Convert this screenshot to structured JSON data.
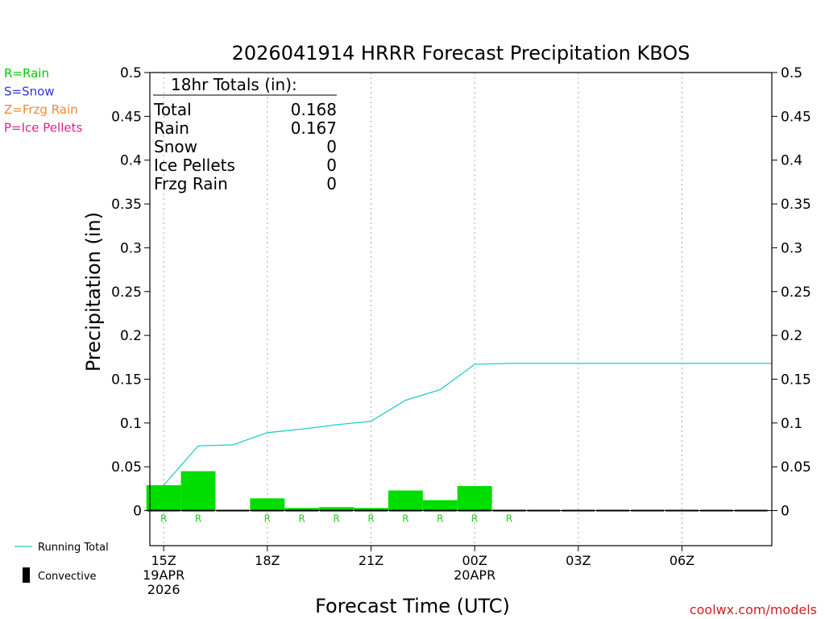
{
  "watermark": "coolwx.com/models",
  "legend_left": {
    "ptypes": [
      {
        "label": "R=Rain",
        "color": "#00cc00"
      },
      {
        "label": "S=Snow",
        "color": "#3333dd"
      },
      {
        "label": "Z=Frzg Rain",
        "color": "#ee8833"
      },
      {
        "label": "P=Ice Pellets",
        "color": "#dd2288"
      }
    ],
    "running_total_label": "Running Total",
    "convective_label": "Convective"
  },
  "totals_box": {
    "title": "18hr Totals (in):",
    "rows": [
      {
        "label": "Total",
        "value": "0.168"
      },
      {
        "label": "Rain",
        "value": "0.167"
      },
      {
        "label": "Snow",
        "value": "0"
      },
      {
        "label": "Ice Pellets",
        "value": "0"
      },
      {
        "label": "Frzg Rain",
        "value": "0"
      }
    ]
  },
  "chart_data": {
    "type": "bar",
    "title": "2026041914 HRRR Forecast Precipitation KBOS",
    "xlabel": "Forecast Time (UTC)",
    "ylabel": "Precipitation (in)",
    "ylim": [
      -0.04,
      0.5
    ],
    "yticks": [
      "0",
      "0.05",
      "0.1",
      "0.15",
      "0.2",
      "0.25",
      "0.3",
      "0.35",
      "0.4",
      "0.45",
      "0.5"
    ],
    "xlim": [
      14.6,
      32.6
    ],
    "xticks": [
      {
        "hour": 15,
        "lines": [
          "15Z",
          "19APR",
          "2026"
        ]
      },
      {
        "hour": 18,
        "lines": [
          "18Z"
        ]
      },
      {
        "hour": 21,
        "lines": [
          "21Z"
        ]
      },
      {
        "hour": 24,
        "lines": [
          "00Z",
          "20APR"
        ]
      },
      {
        "hour": 27,
        "lines": [
          "03Z"
        ]
      },
      {
        "hour": 30,
        "lines": [
          "06Z"
        ]
      }
    ],
    "grid": "vertical-dotted",
    "hourly_precip": [
      {
        "hour": 15,
        "value": 0.029,
        "ptype": "R"
      },
      {
        "hour": 16,
        "value": 0.045,
        "ptype": "R"
      },
      {
        "hour": 17,
        "value": 0.0,
        "ptype": ""
      },
      {
        "hour": 18,
        "value": 0.014,
        "ptype": "R"
      },
      {
        "hour": 19,
        "value": 0.003,
        "ptype": "R"
      },
      {
        "hour": 20,
        "value": 0.004,
        "ptype": "R"
      },
      {
        "hour": 21,
        "value": 0.003,
        "ptype": "R"
      },
      {
        "hour": 22,
        "value": 0.023,
        "ptype": "R"
      },
      {
        "hour": 23,
        "value": 0.012,
        "ptype": "R"
      },
      {
        "hour": 24,
        "value": 0.028,
        "ptype": "R"
      },
      {
        "hour": 25,
        "value": 0.001,
        "ptype": "R"
      },
      {
        "hour": 26,
        "value": 0.0,
        "ptype": ""
      },
      {
        "hour": 27,
        "value": 0.0,
        "ptype": ""
      },
      {
        "hour": 28,
        "value": 0.0,
        "ptype": ""
      },
      {
        "hour": 29,
        "value": 0.0,
        "ptype": ""
      },
      {
        "hour": 30,
        "value": 0.0,
        "ptype": ""
      },
      {
        "hour": 31,
        "value": 0.0,
        "ptype": ""
      },
      {
        "hour": 32,
        "value": 0.0,
        "ptype": ""
      }
    ],
    "running_total": [
      {
        "hour": 15,
        "value": 0.029
      },
      {
        "hour": 16,
        "value": 0.074
      },
      {
        "hour": 17,
        "value": 0.075
      },
      {
        "hour": 18,
        "value": 0.089
      },
      {
        "hour": 19,
        "value": 0.093
      },
      {
        "hour": 20,
        "value": 0.098
      },
      {
        "hour": 21,
        "value": 0.102
      },
      {
        "hour": 22,
        "value": 0.126
      },
      {
        "hour": 23,
        "value": 0.138
      },
      {
        "hour": 24,
        "value": 0.167
      },
      {
        "hour": 25,
        "value": 0.168
      },
      {
        "hour": 26,
        "value": 0.168
      },
      {
        "hour": 27,
        "value": 0.168
      },
      {
        "hour": 28,
        "value": 0.168
      },
      {
        "hour": 29,
        "value": 0.168
      },
      {
        "hour": 30,
        "value": 0.168
      },
      {
        "hour": 31,
        "value": 0.168
      },
      {
        "hour": 32,
        "value": 0.168
      },
      {
        "hour": 32.6,
        "value": 0.168
      }
    ],
    "colors": {
      "rain_bar": "#00dd00",
      "rain_label": "#22cc22",
      "running_total": "#22cccc",
      "convective": "#000000",
      "grid": "#aaaaaa",
      "axis": "#000000"
    }
  }
}
